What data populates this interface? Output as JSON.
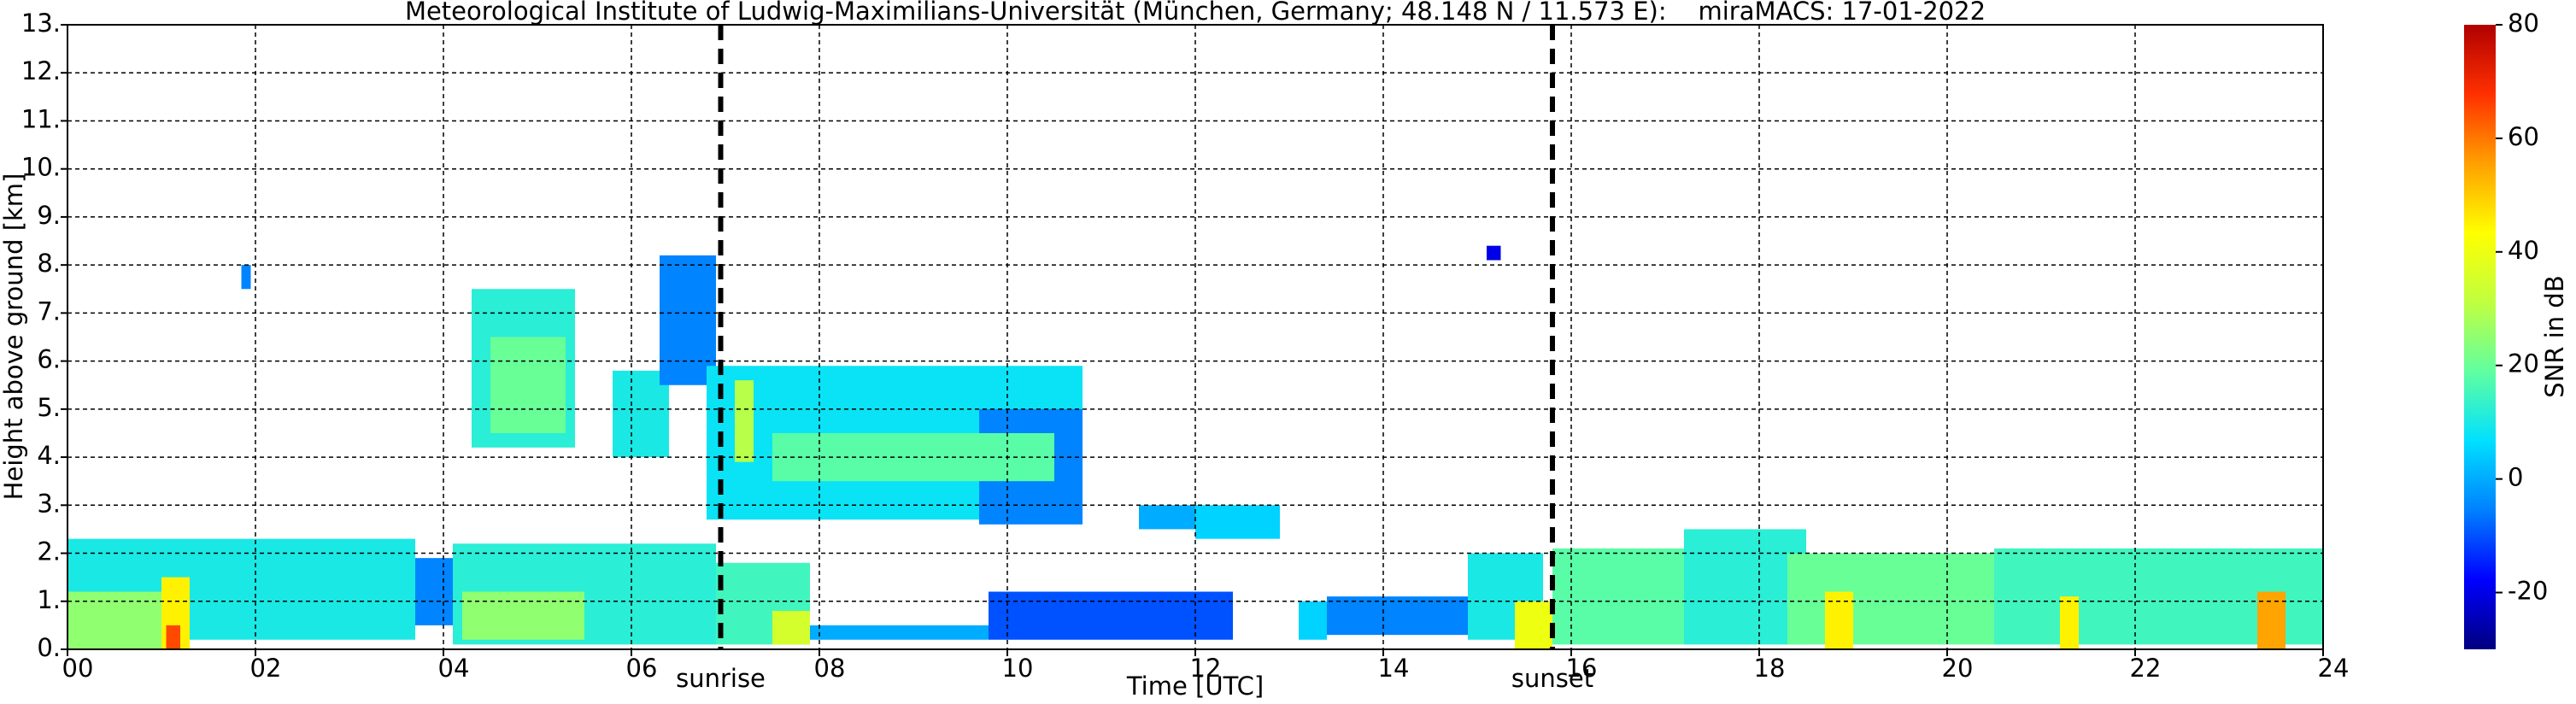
{
  "chart_data": {
    "type": "heatmap",
    "title": "Meteorological Institute of Ludwig-Maximilians-Universität (München, Germany; 48.148 N / 11.573 E):    miraMACS: 17-01-2022",
    "x_label": "Time [UTC]",
    "y_label": "Height above ground [km]",
    "xlim": [
      0,
      24
    ],
    "xticks": [
      {
        "value": 0,
        "label": "00"
      },
      {
        "value": 2,
        "label": "02"
      },
      {
        "value": 4,
        "label": "04"
      },
      {
        "value": 6,
        "label": "06"
      },
      {
        "value": 8,
        "label": "08"
      },
      {
        "value": 10,
        "label": "10"
      },
      {
        "value": 12,
        "label": "12"
      },
      {
        "value": 14,
        "label": "14"
      },
      {
        "value": 16,
        "label": "16"
      },
      {
        "value": 18,
        "label": "18"
      },
      {
        "value": 20,
        "label": "20"
      },
      {
        "value": 22,
        "label": "22"
      },
      {
        "value": 24,
        "label": "24"
      }
    ],
    "ylim": [
      0,
      13
    ],
    "yticks": [
      {
        "value": 0,
        "label": "0."
      },
      {
        "value": 1,
        "label": "1."
      },
      {
        "value": 2,
        "label": "2."
      },
      {
        "value": 3,
        "label": "3."
      },
      {
        "value": 4,
        "label": "4."
      },
      {
        "value": 5,
        "label": "5."
      },
      {
        "value": 6,
        "label": "6."
      },
      {
        "value": 7,
        "label": "7."
      },
      {
        "value": 8,
        "label": "8."
      },
      {
        "value": 9,
        "label": "9."
      },
      {
        "value": 10,
        "label": "10."
      },
      {
        "value": 11,
        "label": "11."
      },
      {
        "value": 12,
        "label": "12."
      },
      {
        "value": 13,
        "label": "13."
      }
    ],
    "grid": true,
    "colorbar": {
      "label": "SNR in dB",
      "lim": [
        -30,
        80
      ],
      "ticks": [
        -20,
        0,
        20,
        40,
        60,
        80
      ],
      "colormap": [
        "#00007f",
        "#0000ff",
        "#0080ff",
        "#00e0ff",
        "#60ffa0",
        "#c0ff40",
        "#ffff00",
        "#ffa000",
        "#ff3000",
        "#b00000"
      ]
    },
    "annotations": [
      {
        "text": "sunrise",
        "x": 6.95
      },
      {
        "text": "sunset",
        "x": 15.8
      }
    ],
    "cells": [
      {
        "t": [
          0,
          3.7
        ],
        "h": [
          0.2,
          2.3
        ],
        "snr": 10
      },
      {
        "t": [
          0,
          1.0
        ],
        "h": [
          0,
          1.2
        ],
        "snr": 25
      },
      {
        "t": [
          1.0,
          1.3
        ],
        "h": [
          0,
          1.5
        ],
        "snr": 45
      },
      {
        "t": [
          1.05,
          1.2
        ],
        "h": [
          0,
          0.5
        ],
        "snr": 65
      },
      {
        "t": [
          3.7,
          4.2
        ],
        "h": [
          0.5,
          1.9
        ],
        "snr": -5
      },
      {
        "t": [
          4.1,
          6.9
        ],
        "h": [
          0.1,
          2.2
        ],
        "snr": 12
      },
      {
        "t": [
          4.2,
          5.5
        ],
        "h": [
          0.2,
          1.2
        ],
        "snr": 25
      },
      {
        "t": [
          6.9,
          7.9
        ],
        "h": [
          0.1,
          1.8
        ],
        "snr": 15
      },
      {
        "t": [
          7.5,
          7.9
        ],
        "h": [
          0.1,
          0.8
        ],
        "snr": 35
      },
      {
        "t": [
          7.9,
          9.8
        ],
        "h": [
          0.2,
          0.5
        ],
        "snr": 0
      },
      {
        "t": [
          9.8,
          12.4
        ],
        "h": [
          0.2,
          1.2
        ],
        "snr": -10
      },
      {
        "t": [
          13.1,
          13.4
        ],
        "h": [
          0.2,
          1.0
        ],
        "snr": 5
      },
      {
        "t": [
          13.4,
          15.0
        ],
        "h": [
          0.3,
          1.1
        ],
        "snr": -5
      },
      {
        "t": [
          14.9,
          15.7
        ],
        "h": [
          0.2,
          2.0
        ],
        "snr": 10
      },
      {
        "t": [
          15.4,
          15.8
        ],
        "h": [
          0,
          1.0
        ],
        "snr": 40
      },
      {
        "t": [
          15.8,
          17.2
        ],
        "h": [
          0.1,
          2.1
        ],
        "snr": 18
      },
      {
        "t": [
          17.2,
          18.5
        ],
        "h": [
          0.1,
          2.5
        ],
        "snr": 12
      },
      {
        "t": [
          18.3,
          20.5
        ],
        "h": [
          0.1,
          2.0
        ],
        "snr": 20
      },
      {
        "t": [
          18.7,
          19.0
        ],
        "h": [
          0,
          1.2
        ],
        "snr": 45
      },
      {
        "t": [
          20.5,
          24
        ],
        "h": [
          0.1,
          2.1
        ],
        "snr": 15
      },
      {
        "t": [
          21.2,
          21.4
        ],
        "h": [
          0,
          1.1
        ],
        "snr": 45
      },
      {
        "t": [
          23.3,
          23.6
        ],
        "h": [
          0,
          1.2
        ],
        "snr": 55
      },
      {
        "t": [
          4.3,
          5.4
        ],
        "h": [
          4.2,
          7.5
        ],
        "snr": 12
      },
      {
        "t": [
          4.5,
          5.3
        ],
        "h": [
          4.5,
          6.5
        ],
        "snr": 20
      },
      {
        "t": [
          5.8,
          6.4
        ],
        "h": [
          4.0,
          5.8
        ],
        "snr": 10
      },
      {
        "t": [
          6.3,
          6.9
        ],
        "h": [
          5.5,
          8.2
        ],
        "snr": -5
      },
      {
        "t": [
          6.8,
          10.8
        ],
        "h": [
          2.7,
          5.9
        ],
        "snr": 8
      },
      {
        "t": [
          9.7,
          10.8
        ],
        "h": [
          2.6,
          5.0
        ],
        "snr": -5
      },
      {
        "t": [
          7.5,
          10.5
        ],
        "h": [
          3.5,
          4.5
        ],
        "snr": 18
      },
      {
        "t": [
          7.1,
          7.3
        ],
        "h": [
          3.9,
          5.6
        ],
        "snr": 30
      },
      {
        "t": [
          11.4,
          12.0
        ],
        "h": [
          2.5,
          3.0
        ],
        "snr": 0
      },
      {
        "t": [
          12.0,
          12.9
        ],
        "h": [
          2.3,
          3.0
        ],
        "snr": 5
      },
      {
        "t": [
          1.85,
          1.95
        ],
        "h": [
          7.5,
          8.0
        ],
        "snr": -5
      },
      {
        "t": [
          15.1,
          15.25
        ],
        "h": [
          8.1,
          8.4
        ],
        "snr": -20
      }
    ]
  }
}
